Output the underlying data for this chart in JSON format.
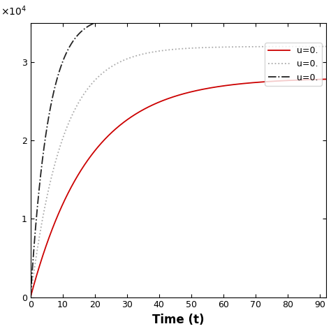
{
  "title": "",
  "xlabel": "Time (t)",
  "ylabel": "",
  "ylim": [
    0,
    35000.0
  ],
  "xlim": [
    0,
    92
  ],
  "xticks": [
    0,
    10,
    20,
    30,
    40,
    50,
    60,
    70,
    80,
    90
  ],
  "ytick_scale": 10000.0,
  "series": [
    {
      "label": "u=0.",
      "color": "#cc0000",
      "linestyle": "solid",
      "linewidth": 1.3,
      "A": 28000,
      "r": 0.055
    },
    {
      "label": "u=0.",
      "color": "#aaaaaa",
      "linestyle": "dotted",
      "linewidth": 1.3,
      "A": 32000,
      "r": 0.1
    },
    {
      "label": "u=0.",
      "color": "#222222",
      "linestyle": "dashdot",
      "linewidth": 1.3,
      "A": 36000,
      "r": 0.18
    }
  ],
  "legend_loc": "center right",
  "background_color": "#ffffff",
  "xlabel_fontsize": 12,
  "xlabel_fontweight": "bold",
  "legend_fontsize": 9,
  "tick_labelsize": 9
}
